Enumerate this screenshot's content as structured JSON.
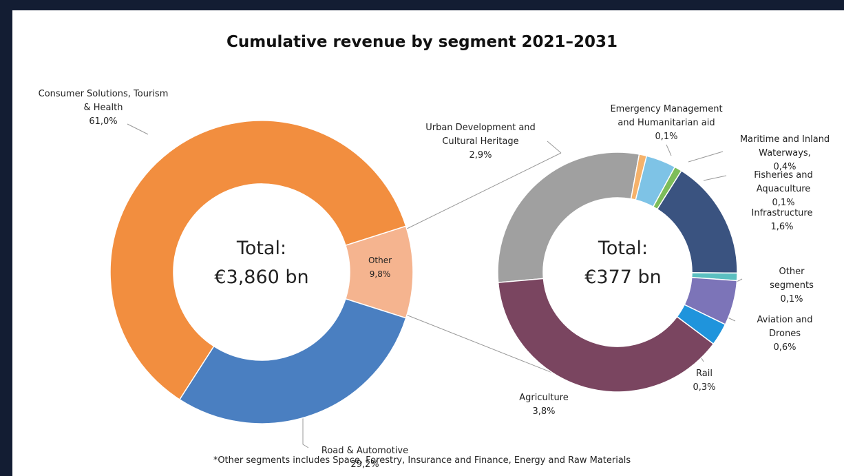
{
  "title": "Cumulative revenue by segment 2021–2031",
  "footnote": "*Other segments includes Space, Forestry, Insurance and Finance, Energy and Raw Materials",
  "chart_data": [
    {
      "type": "donut",
      "center_label": [
        "Total:",
        "€3,860 bn"
      ],
      "categories": [
        "Consumer Solutions, Tourism & Health",
        "Other",
        "Road & Automotive"
      ],
      "values": [
        61.0,
        9.8,
        29.2
      ],
      "value_labels": [
        "61,0%",
        "9,8%",
        "29,2%"
      ],
      "colors": [
        "#f28e3f",
        "#f5b48f",
        "#4a7fc1"
      ]
    },
    {
      "type": "donut",
      "center_label": [
        "Total:",
        "€377 bn"
      ],
      "categories": [
        "Urban Development and Cultural Heritage",
        "Emergency Management and Humanitarian aid",
        "Maritime and Inland Waterways,",
        "Fisheries and Aquaculture",
        "Infrastructure",
        "Other segments",
        "Aviation and Drones",
        "Rail",
        "Agriculture"
      ],
      "values": [
        2.9,
        0.1,
        0.4,
        0.1,
        1.6,
        0.1,
        0.6,
        0.3,
        3.8
      ],
      "value_labels": [
        "2,9%",
        "0,1%",
        "0,4%",
        "0,1%",
        "1,6%",
        "0,1%",
        "0,6%",
        "0,3%",
        "3,8%"
      ],
      "colors": [
        "#a0a0a0",
        "#f5b26b",
        "#7ec3e6",
        "#7dbd5a",
        "#3a5380",
        "#5bbfc0",
        "#7c74b8",
        "#1f94dc",
        "#7a4560"
      ]
    }
  ]
}
